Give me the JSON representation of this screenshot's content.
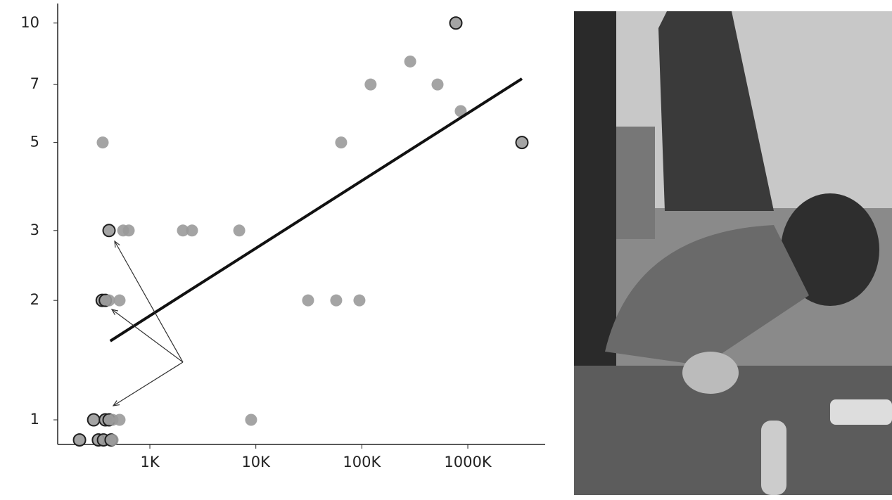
{
  "chart_data": {
    "type": "scatter",
    "xscale": "log",
    "yscale": "log",
    "xlim": [
      135,
      5370000
    ],
    "ylim": [
      0.867,
      11.2
    ],
    "xticks": [
      {
        "value": 1000,
        "label": "1K"
      },
      {
        "value": 10000,
        "label": "10K"
      },
      {
        "value": 100000,
        "label": "100K"
      },
      {
        "value": 1000000,
        "label": "1000K"
      }
    ],
    "yticks": [
      1,
      2,
      3,
      5,
      7,
      10
    ],
    "color": "#9a9a9a",
    "edge_color": "#1e1e1e",
    "x": [
      217,
      327,
      365,
      431,
      445,
      295,
      380,
      412,
      445,
      518,
      9020,
      355,
      380,
      412,
      518,
      31100,
      57300,
      94900,
      412,
      560,
      632,
      2050,
      2500,
      6970,
      359,
      63800,
      857000,
      121000,
      518000,
      286000,
      771000,
      3240000
    ],
    "values": [
      0.89,
      0.89,
      0.89,
      0.89,
      0.89,
      1,
      1,
      1,
      1,
      1,
      1,
      2,
      2,
      2,
      2,
      2,
      2,
      2,
      3,
      3,
      3,
      3,
      3,
      3,
      5,
      5,
      6,
      7,
      7,
      8,
      10,
      5
    ],
    "outlined": [
      true,
      true,
      true,
      true,
      false,
      true,
      true,
      true,
      false,
      false,
      false,
      true,
      true,
      false,
      false,
      false,
      false,
      false,
      true,
      false,
      false,
      false,
      false,
      false,
      false,
      false,
      false,
      false,
      false,
      false,
      true,
      true
    ],
    "trendline": {
      "x": [
        423,
        3240000
      ],
      "values": [
        1.58,
        7.24
      ],
      "color": "#111111"
    }
  }
}
